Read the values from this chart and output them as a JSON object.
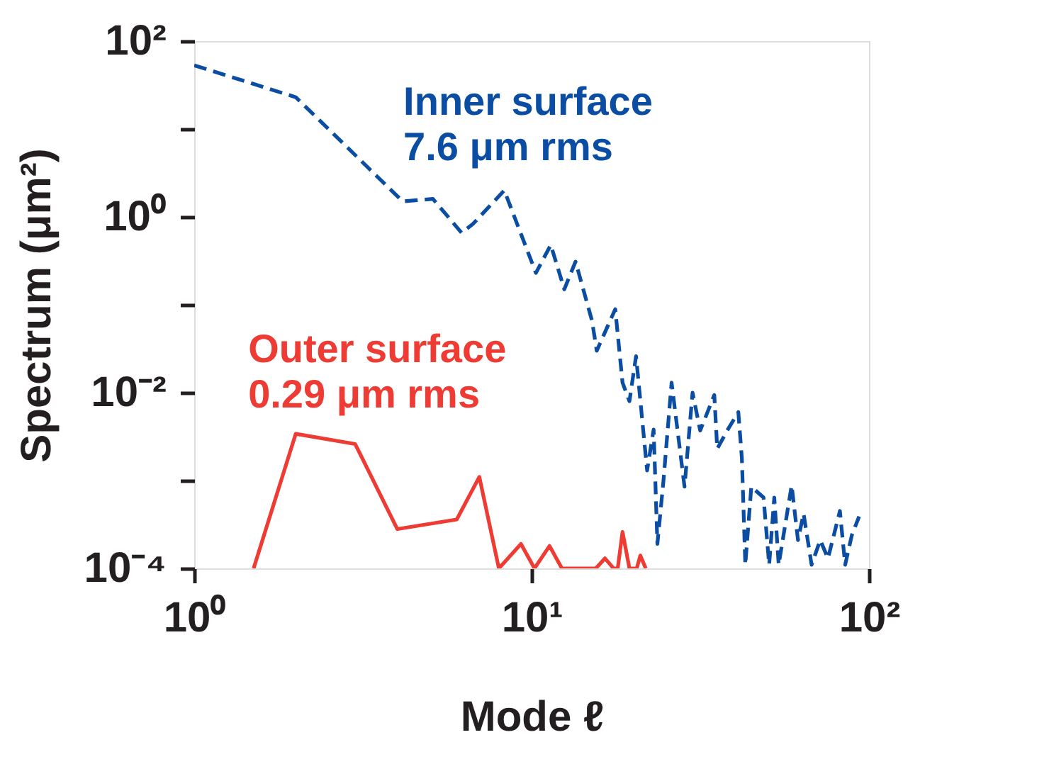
{
  "chart_data": {
    "type": "line",
    "xlabel": "Mode ℓ",
    "ylabel": "Spectrum (μm²)",
    "log": "xy",
    "xlim": [
      1,
      100
    ],
    "ylim": [
      0.0001,
      100
    ],
    "xticks": [
      {
        "value": 1,
        "label": "10⁰"
      },
      {
        "value": 10,
        "label": "10¹"
      },
      {
        "value": 100,
        "label": "10²"
      }
    ],
    "yticks": [
      {
        "value": 0.0001,
        "label": "10⁻⁴"
      },
      {
        "value": 0.001,
        "label": null
      },
      {
        "value": 0.01,
        "label": "10⁻²"
      },
      {
        "value": 0.1,
        "label": null
      },
      {
        "value": 1,
        "label": "10⁰"
      },
      {
        "value": 10,
        "label": null
      },
      {
        "value": 100,
        "label": "10²"
      }
    ],
    "grid": false,
    "marker": "none",
    "series": [
      {
        "name": "Inner surface\n7.6 μm rms",
        "color": "#0a4da2",
        "line_style": "dashed",
        "x": [
          1,
          2,
          4.15,
          5.1,
          6.2,
          6.7,
          8.3,
          10.3,
          11.4,
          12.5,
          13.5,
          15.1,
          15.6,
          17.7,
          18.6,
          19.5,
          20.4,
          22,
          23,
          23.6,
          24.6,
          26,
          28.4,
          30,
          31.6,
          34.8,
          35.5,
          38,
          41,
          42,
          43,
          44.8,
          48.7,
          50.6,
          52.4,
          54,
          59,
          61.6,
          64,
          67.6,
          71.7,
          75.6,
          82,
          85,
          89,
          93.5
        ],
        "values": [
          53,
          23,
          1.5,
          1.6,
          0.66,
          0.83,
          2.0,
          0.23,
          0.48,
          0.15,
          0.31,
          0.066,
          0.03,
          0.089,
          0.013,
          0.008,
          0.026,
          0.0013,
          0.0038,
          0.00019,
          0.001,
          0.013,
          0.00085,
          0.01,
          0.0037,
          0.0094,
          0.0023,
          0.0037,
          0.006,
          0.0018,
          0.00011,
          0.00085,
          0.00064,
          0.00011,
          0.00064,
          0.00011,
          0.00088,
          0.00021,
          0.00042,
          0.00011,
          0.00021,
          0.00013,
          0.00045,
          0.00011,
          0.00024,
          0.00039
        ]
      },
      {
        "name": "Outer surface\n0.29 μm rms",
        "color": "#ee3b33",
        "line_style": "solid",
        "x": [
          1.5,
          2,
          3,
          4,
          6,
          7,
          8,
          9.3,
          10.2,
          11.3,
          12.3,
          15.5,
          16.5,
          17.5,
          18,
          18.6,
          19.5,
          20.5,
          21,
          21.8
        ],
        "values": [
          0.0001,
          0.0034,
          0.0026,
          0.00028,
          0.00036,
          0.0011,
          0.0001,
          0.00019,
          0.0001,
          0.00018,
          0.0001,
          0.0001,
          0.00013,
          0.0001,
          0.0001,
          0.00026,
          0.0001,
          0.0001,
          0.00014,
          0.0001
        ]
      }
    ]
  }
}
